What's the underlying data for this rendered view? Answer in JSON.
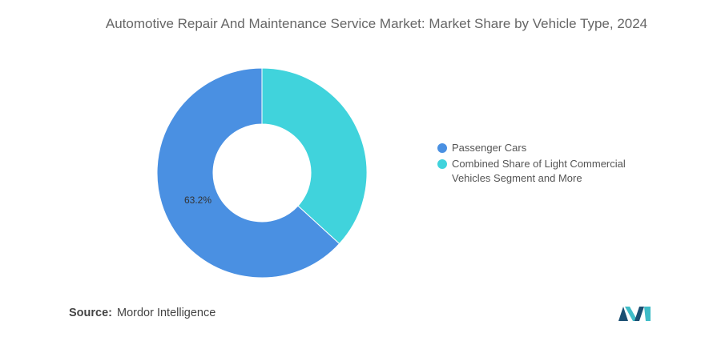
{
  "chart_data": {
    "type": "pie",
    "donut": true,
    "title": "Automotive Repair And Maintenance Service Market: Market Share by Vehicle Type, 2024",
    "categories": [
      "Passenger Cars",
      "Combined Share of Light Commercial Vehicles Segment and More"
    ],
    "values": [
      63.2,
      36.8
    ],
    "data_labels": [
      "63.2%",
      ""
    ],
    "colors": [
      "#4a90e2",
      "#40d3dc"
    ],
    "legend_position": "right"
  },
  "source": {
    "label": "Source:",
    "value": "Mordor Intelligence"
  },
  "brand": {
    "logo": "mordor-intelligence-logo",
    "colors": [
      "#1b4f72",
      "#3fbcc7"
    ]
  }
}
